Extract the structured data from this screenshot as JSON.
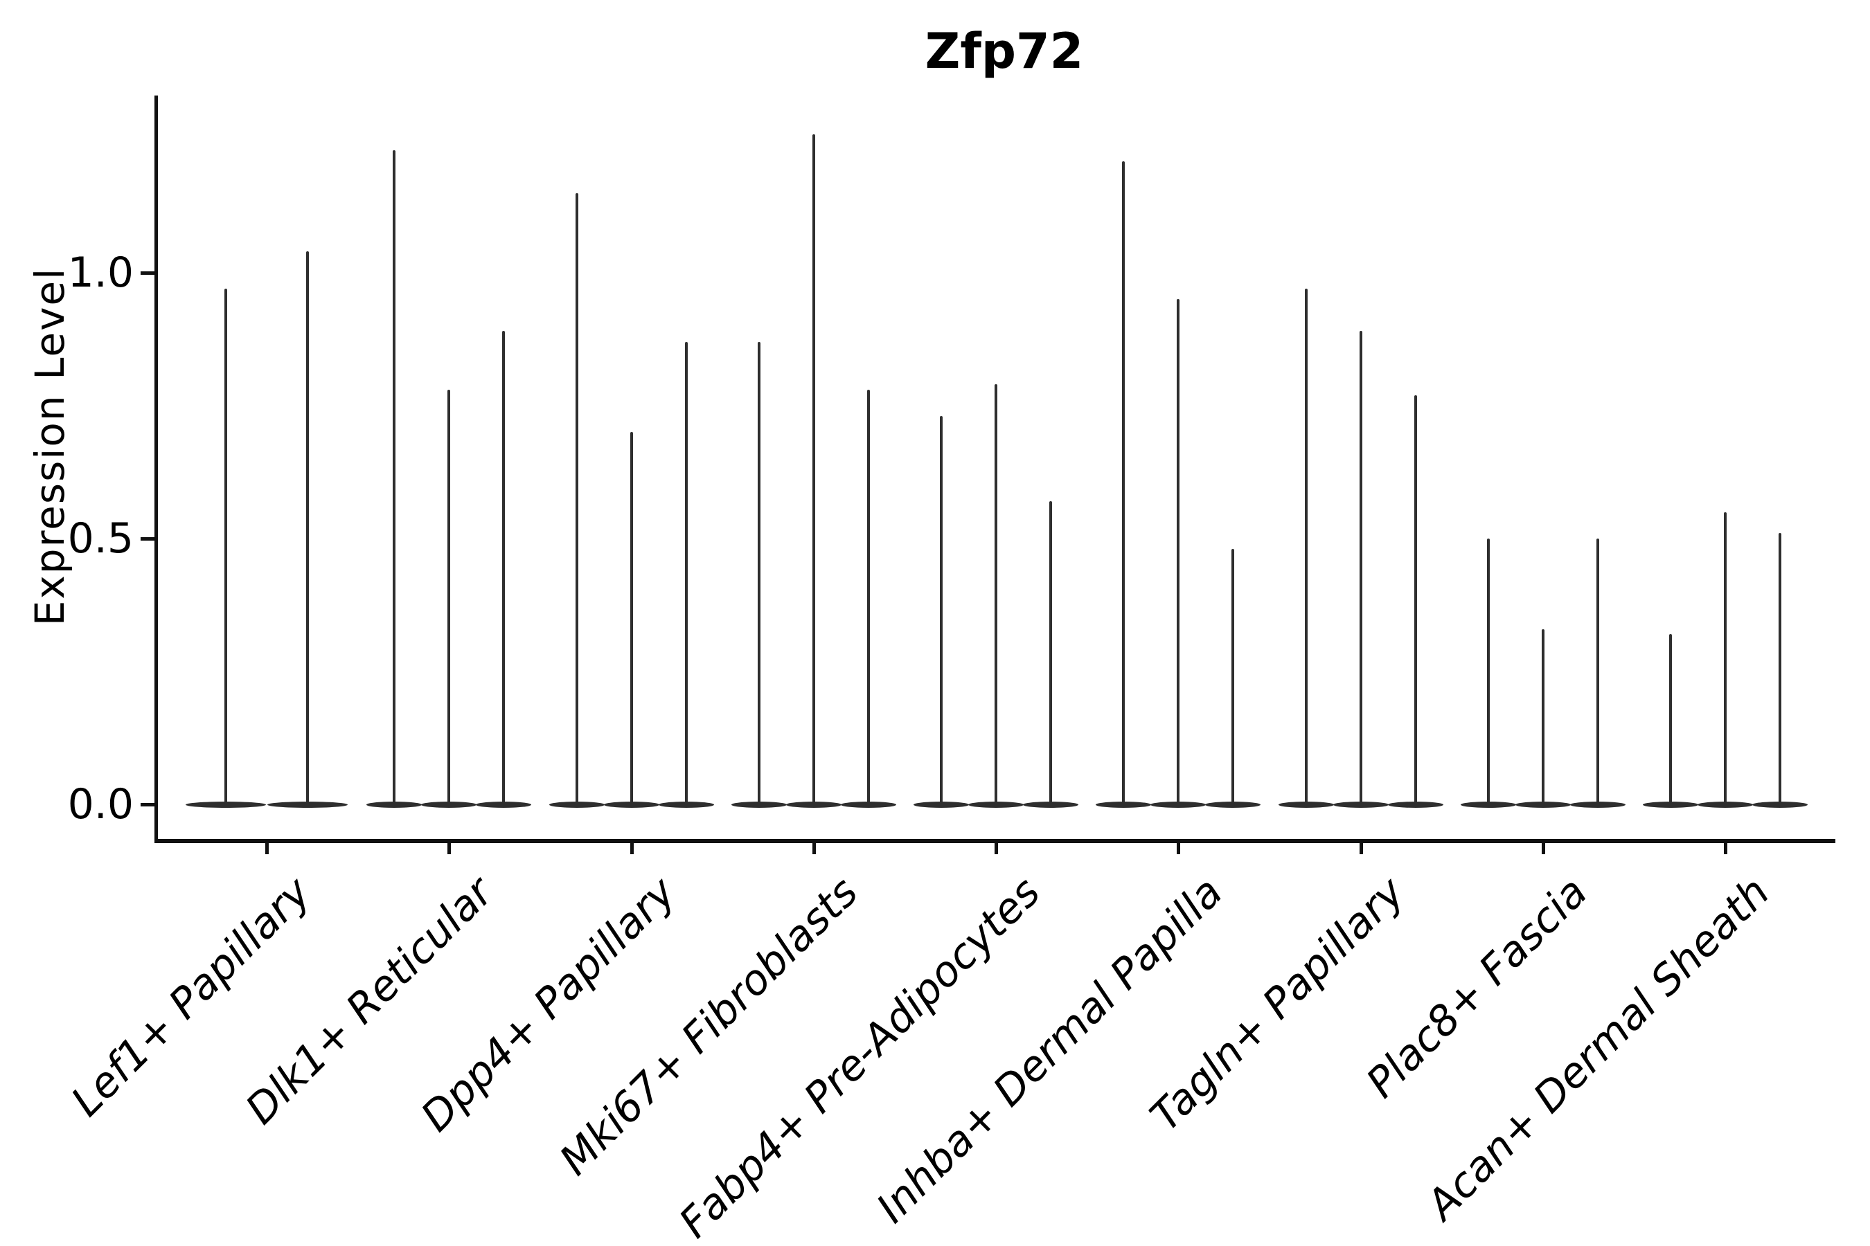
{
  "title": "Zfp72",
  "y_axis": {
    "label": "Expression Level",
    "ticks": [
      {
        "label": "0.0",
        "value": 0.0
      },
      {
        "label": "0.5",
        "value": 0.5
      },
      {
        "label": "1.0",
        "value": 1.0
      }
    ]
  },
  "style": {
    "violin_color": "#2e2e2e",
    "axis_color": "#111111",
    "background": "#ffffff",
    "title_bold": true,
    "x_labels_italic": true,
    "x_labels_rotation_deg": 45
  },
  "chart_data": {
    "type": "violin",
    "title": "Zfp72",
    "xlabel": "",
    "ylabel": "Expression Level",
    "ylim": [
      -0.07,
      1.33
    ],
    "y_ticks": [
      0.0,
      0.5,
      1.0
    ],
    "grid": false,
    "legend": "none",
    "note": "Each violin is a hair-thin spike: nearly all density sits at 0 (flat lens at the baseline) with a thin tail rising to the listed maximum expression value.",
    "categories": [
      "Lef1+ Papillary",
      "Dlk1+ Reticular",
      "Dpp4+ Papillary",
      "Mki67+ Fibroblasts",
      "Fabp4+ Pre-Adipocytes",
      "Inhba+ Dermal Papilla",
      "Tagln+ Papillary",
      "Plac8+ Fascia",
      "Acan+ Dermal Sheath"
    ],
    "groups": [
      {
        "category": "Lef1+ Papillary",
        "violin_max_values": [
          0.97,
          1.04
        ]
      },
      {
        "category": "Dlk1+ Reticular",
        "violin_max_values": [
          1.23,
          0.78,
          0.89
        ]
      },
      {
        "category": "Dpp4+ Papillary",
        "violin_max_values": [
          1.15,
          0.7,
          0.87
        ]
      },
      {
        "category": "Mki67+ Fibroblasts",
        "violin_max_values": [
          0.87,
          1.26,
          0.78
        ]
      },
      {
        "category": "Fabp4+ Pre-Adipocytes",
        "violin_max_values": [
          0.73,
          0.79,
          0.57
        ]
      },
      {
        "category": "Inhba+ Dermal Papilla",
        "violin_max_values": [
          1.21,
          0.95,
          0.48
        ]
      },
      {
        "category": "Tagln+ Papillary",
        "violin_max_values": [
          0.97,
          0.89,
          0.77
        ]
      },
      {
        "category": "Plac8+ Fascia",
        "violin_max_values": [
          0.5,
          0.33,
          0.5
        ]
      },
      {
        "category": "Acan+ Dermal Sheath",
        "violin_max_values": [
          0.32,
          0.55,
          0.51
        ]
      }
    ]
  }
}
